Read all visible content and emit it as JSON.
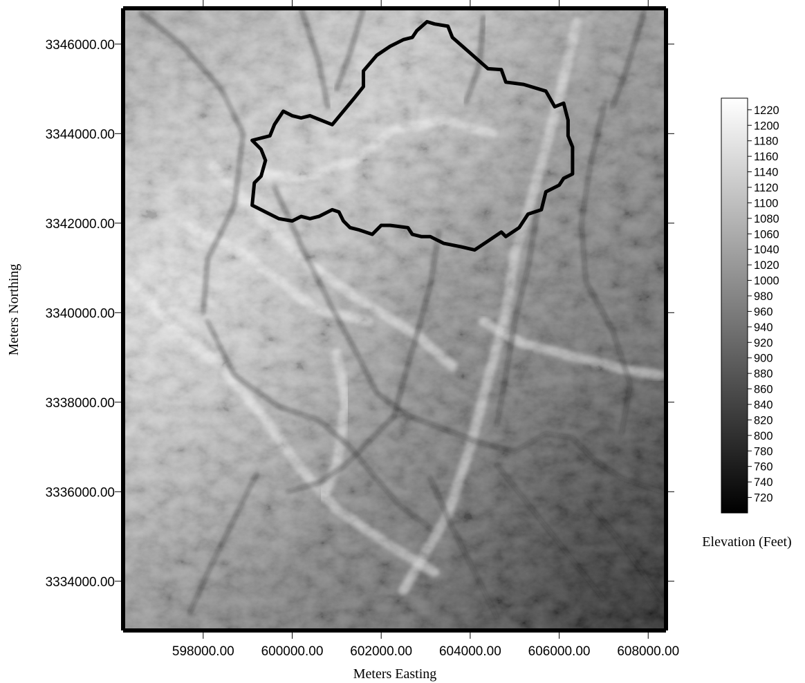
{
  "map": {
    "x_axis_title": "Meters Easting",
    "y_axis_title": "Meters Northing",
    "x_range": [
      596200,
      608400
    ],
    "y_range": [
      3332900,
      3346800
    ],
    "x_ticks": [
      {
        "value": 598000,
        "label": "598000.00"
      },
      {
        "value": 600000,
        "label": "600000.00"
      },
      {
        "value": 602000,
        "label": "602000.00"
      },
      {
        "value": 604000,
        "label": "604000.00"
      },
      {
        "value": 606000,
        "label": "606000.00"
      },
      {
        "value": 608000,
        "label": "608000.00"
      }
    ],
    "y_ticks": [
      {
        "value": 3334000,
        "label": "3334000.00"
      },
      {
        "value": 3336000,
        "label": "3336000.00"
      },
      {
        "value": 3338000,
        "label": "3338000.00"
      },
      {
        "value": 3340000,
        "label": "3340000.00"
      },
      {
        "value": 3342000,
        "label": "3342000.00"
      },
      {
        "value": 3344000,
        "label": "3344000.00"
      },
      {
        "value": 3346000,
        "label": "3346000.00"
      }
    ],
    "raster_colors": {
      "low": "#000000",
      "high": "#ffffff"
    },
    "watershed_outline_color": "#000000",
    "watershed_boundary": [
      [
        603030,
        3346500
      ],
      [
        603200,
        3346450
      ],
      [
        603500,
        3346400
      ],
      [
        603600,
        3346150
      ],
      [
        604000,
        3345800
      ],
      [
        604400,
        3345450
      ],
      [
        604700,
        3345430
      ],
      [
        604800,
        3345150
      ],
      [
        605200,
        3345100
      ],
      [
        605700,
        3344950
      ],
      [
        605900,
        3344600
      ],
      [
        606100,
        3344680
      ],
      [
        606200,
        3344300
      ],
      [
        606200,
        3343950
      ],
      [
        606300,
        3343700
      ],
      [
        606300,
        3343100
      ],
      [
        606100,
        3343000
      ],
      [
        606000,
        3342850
      ],
      [
        605700,
        3342700
      ],
      [
        605600,
        3342300
      ],
      [
        605300,
        3342200
      ],
      [
        605100,
        3341900
      ],
      [
        604800,
        3341700
      ],
      [
        604700,
        3341800
      ],
      [
        604400,
        3341600
      ],
      [
        604100,
        3341400
      ],
      [
        603800,
        3341470
      ],
      [
        603400,
        3341550
      ],
      [
        603100,
        3341700
      ],
      [
        602900,
        3341700
      ],
      [
        602700,
        3341750
      ],
      [
        602600,
        3341900
      ],
      [
        602200,
        3341950
      ],
      [
        602000,
        3341950
      ],
      [
        601800,
        3341750
      ],
      [
        601500,
        3341850
      ],
      [
        601300,
        3341900
      ],
      [
        601150,
        3342050
      ],
      [
        601050,
        3342250
      ],
      [
        600900,
        3342300
      ],
      [
        600600,
        3342150
      ],
      [
        600400,
        3342100
      ],
      [
        600200,
        3342150
      ],
      [
        600000,
        3342050
      ],
      [
        599700,
        3342100
      ],
      [
        599100,
        3342400
      ],
      [
        599150,
        3342900
      ],
      [
        599300,
        3343050
      ],
      [
        599400,
        3343400
      ],
      [
        599300,
        3343650
      ],
      [
        599100,
        3343850
      ],
      [
        599500,
        3343950
      ],
      [
        599600,
        3344200
      ],
      [
        599800,
        3344500
      ],
      [
        600000,
        3344400
      ],
      [
        600200,
        3344350
      ],
      [
        600400,
        3344400
      ],
      [
        600900,
        3344200
      ],
      [
        601400,
        3344800
      ],
      [
        601600,
        3345050
      ],
      [
        601600,
        3345400
      ],
      [
        601900,
        3345750
      ],
      [
        602200,
        3345950
      ],
      [
        602500,
        3346100
      ],
      [
        602700,
        3346150
      ],
      [
        602800,
        3346300
      ]
    ],
    "ridge_paths": [
      [
        [
          602500,
          3333800
        ],
        [
          603500,
          3335500
        ],
        [
          604000,
          3337000
        ],
        [
          604400,
          3338500
        ],
        [
          604800,
          3340000
        ],
        [
          605000,
          3341300
        ],
        [
          605400,
          3342600
        ],
        [
          606000,
          3344800
        ],
        [
          606400,
          3346500
        ]
      ],
      [
        [
          596300,
          3340800
        ],
        [
          597200,
          3339800
        ],
        [
          598400,
          3338800
        ],
        [
          599400,
          3337600
        ],
        [
          600200,
          3336500
        ],
        [
          601000,
          3335600
        ],
        [
          602200,
          3334800
        ],
        [
          603200,
          3334200
        ]
      ],
      [
        [
          598200,
          3343300
        ],
        [
          599200,
          3342200
        ],
        [
          600200,
          3341200
        ],
        [
          601500,
          3340300
        ],
        [
          602800,
          3339500
        ],
        [
          603600,
          3338800
        ]
      ],
      [
        [
          601000,
          3339100
        ],
        [
          601200,
          3338000
        ],
        [
          601000,
          3336600
        ],
        [
          600700,
          3335900
        ]
      ],
      [
        [
          604300,
          3339800
        ],
        [
          605200,
          3339300
        ],
        [
          606400,
          3339000
        ],
        [
          607600,
          3338700
        ],
        [
          608300,
          3338600
        ]
      ],
      [
        [
          604500,
          3344000
        ],
        [
          603400,
          3344300
        ],
        [
          602300,
          3344100
        ],
        [
          601400,
          3343400
        ],
        [
          600200,
          3343000
        ],
        [
          599300,
          3343100
        ]
      ],
      [
        [
          597500,
          3342000
        ],
        [
          598600,
          3341500
        ],
        [
          599600,
          3340800
        ],
        [
          600500,
          3340100
        ],
        [
          601700,
          3339800
        ]
      ]
    ],
    "drainage_paths": [
      [
        [
          596600,
          3346700
        ],
        [
          597500,
          3346000
        ],
        [
          598400,
          3345000
        ],
        [
          598900,
          3344000
        ],
        [
          598700,
          3342400
        ],
        [
          598100,
          3341200
        ],
        [
          598000,
          3340000
        ]
      ],
      [
        [
          600200,
          3346800
        ],
        [
          600600,
          3345600
        ],
        [
          600800,
          3344600
        ]
      ],
      [
        [
          601600,
          3346800
        ],
        [
          601300,
          3345800
        ],
        [
          601000,
          3345000
        ]
      ],
      [
        [
          604300,
          3346600
        ],
        [
          604200,
          3345500
        ],
        [
          603900,
          3344700
        ]
      ],
      [
        [
          599600,
          3342800
        ],
        [
          600300,
          3341300
        ],
        [
          600900,
          3340100
        ],
        [
          601500,
          3339000
        ],
        [
          601900,
          3338200
        ],
        [
          602600,
          3337700
        ],
        [
          603400,
          3337400
        ],
        [
          604200,
          3337100
        ],
        [
          605000,
          3336900
        ],
        [
          605700,
          3337300
        ],
        [
          606300,
          3337200
        ],
        [
          606800,
          3336700
        ],
        [
          607400,
          3336300
        ],
        [
          608300,
          3336000
        ]
      ],
      [
        [
          598100,
          3339800
        ],
        [
          598700,
          3338600
        ],
        [
          599700,
          3337900
        ],
        [
          600600,
          3337600
        ],
        [
          601300,
          3337000
        ],
        [
          601800,
          3336400
        ],
        [
          602400,
          3335700
        ],
        [
          603100,
          3335200
        ]
      ],
      [
        [
          602300,
          3337700
        ],
        [
          601800,
          3337200
        ],
        [
          601200,
          3336600
        ],
        [
          600600,
          3336200
        ],
        [
          599900,
          3336000
        ]
      ],
      [
        [
          603300,
          3341800
        ],
        [
          603100,
          3340600
        ],
        [
          602800,
          3339500
        ],
        [
          602500,
          3338500
        ],
        [
          602300,
          3337700
        ]
      ],
      [
        [
          605500,
          3342200
        ],
        [
          605300,
          3341000
        ],
        [
          605000,
          3339800
        ],
        [
          604800,
          3338600
        ],
        [
          604600,
          3337500
        ]
      ],
      [
        [
          607000,
          3344600
        ],
        [
          606700,
          3343300
        ],
        [
          606500,
          3342000
        ],
        [
          606600,
          3340700
        ],
        [
          607200,
          3339600
        ],
        [
          607600,
          3338400
        ],
        [
          607400,
          3337300
        ]
      ],
      [
        [
          607900,
          3346700
        ],
        [
          607500,
          3345400
        ],
        [
          607200,
          3344600
        ]
      ],
      [
        [
          606600,
          3335800
        ],
        [
          607200,
          3335100
        ],
        [
          607800,
          3334300
        ],
        [
          608300,
          3333600
        ]
      ],
      [
        [
          604600,
          3336600
        ],
        [
          605400,
          3335600
        ],
        [
          606200,
          3334600
        ],
        [
          607000,
          3333600
        ]
      ],
      [
        [
          603100,
          3336300
        ],
        [
          603600,
          3335200
        ],
        [
          604100,
          3334200
        ],
        [
          604600,
          3333200
        ]
      ],
      [
        [
          599200,
          3336400
        ],
        [
          598700,
          3335400
        ],
        [
          598200,
          3334400
        ],
        [
          597700,
          3333300
        ]
      ]
    ]
  },
  "colorbar": {
    "title": "Elevation (Feet)",
    "range": [
      700,
      1235
    ],
    "gradient": {
      "low": "#000000",
      "high": "#ffffff"
    },
    "ticks": [
      1220,
      1200,
      1180,
      1160,
      1140,
      1120,
      1100,
      1080,
      1060,
      1040,
      1020,
      1000,
      980,
      960,
      940,
      920,
      900,
      880,
      860,
      840,
      820,
      800,
      780,
      760,
      740,
      720
    ]
  }
}
